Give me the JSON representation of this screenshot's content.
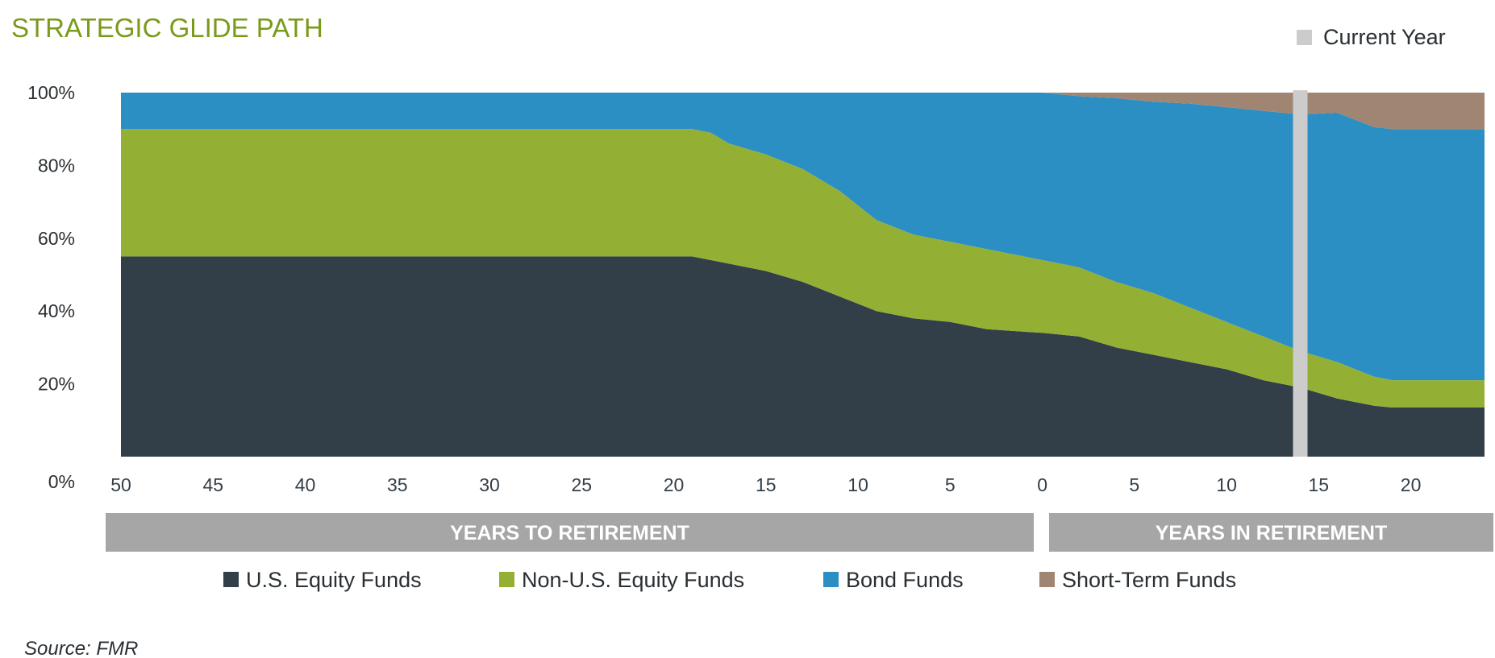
{
  "title": "STRATEGIC GLIDE PATH",
  "source": "Source: FMR",
  "colors": {
    "title": "#7a9a1a",
    "us_equity": "#333f48",
    "non_us_equity": "#94b034",
    "bond": "#2b8fc4",
    "short_term": "#a08573",
    "current_year": "#cccccc",
    "band": "#a6a6a6"
  },
  "chart_data": {
    "type": "area",
    "stacked": true,
    "title": "STRATEGIC GLIDE PATH",
    "ylim": [
      0,
      100
    ],
    "y_ticks": [
      "0%",
      "20%",
      "40%",
      "60%",
      "80%",
      "100%"
    ],
    "x_ticks": [
      "50",
      "45",
      "40",
      "35",
      "30",
      "25",
      "20",
      "15",
      "10",
      "5",
      "0",
      "5",
      "10",
      "15",
      "20"
    ],
    "x_domain": [
      -50,
      24
    ],
    "x_note": "negative values = years to retirement, positive = years in retirement",
    "current_year": 14,
    "current_year_label": "Current Year",
    "x": [
      -50,
      -19,
      -18,
      -17,
      -15,
      -13,
      -11,
      -9,
      -7,
      -5,
      -3,
      0,
      2,
      4,
      6,
      8,
      10,
      12,
      14,
      16,
      18,
      19,
      24
    ],
    "series": [
      {
        "name": "U.S. Equity Funds",
        "color": "#333f48",
        "values": [
          55,
          55,
          54,
          53,
          51,
          48,
          44,
          40,
          38,
          37,
          35,
          34,
          33,
          30,
          28,
          26,
          24,
          21,
          19,
          16,
          14,
          13.5,
          13.5
        ]
      },
      {
        "name": "Non-U.S. Equity Funds",
        "color": "#94b034",
        "values": [
          35,
          35,
          35,
          33,
          32,
          31,
          29,
          25,
          23,
          22,
          22,
          20,
          19,
          18,
          17,
          15,
          13,
          12,
          10,
          10,
          8,
          7.5,
          7.5
        ]
      },
      {
        "name": "Bond Funds",
        "color": "#2b8fc4",
        "values": [
          10,
          10,
          11,
          14,
          17,
          21,
          27,
          35,
          39,
          41,
          43,
          46,
          47,
          50.5,
          52.5,
          56,
          59,
          62,
          65,
          68.5,
          68.5,
          69,
          69
        ]
      },
      {
        "name": "Short-Term Funds",
        "color": "#a08573",
        "values": [
          0,
          0,
          0,
          0,
          0,
          0,
          0,
          0,
          0,
          0,
          0,
          0,
          1,
          1.5,
          2.5,
          3,
          4,
          5,
          6,
          5.5,
          9.5,
          10,
          10
        ]
      }
    ],
    "bands": [
      {
        "label": "YEARS TO RETIREMENT",
        "from": -50,
        "to": 0
      },
      {
        "label": "YEARS IN RETIREMENT",
        "from": 0,
        "to": 24
      }
    ],
    "legend": [
      "U.S. Equity Funds",
      "Non-U.S. Equity Funds",
      "Bond Funds",
      "Short-Term Funds"
    ]
  }
}
